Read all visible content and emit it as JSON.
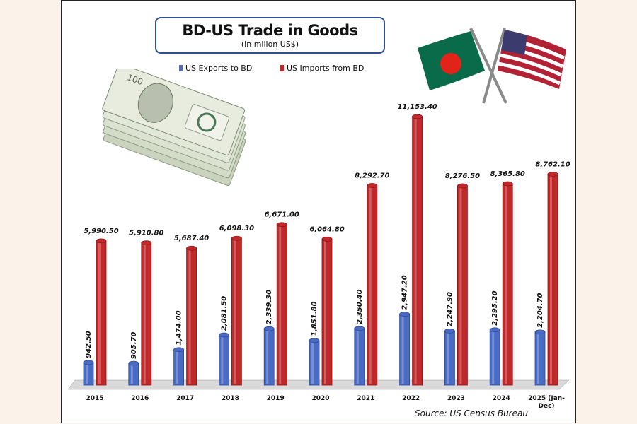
{
  "colors": {
    "exports": "#4a6bc4",
    "imports": "#c0282a",
    "title_border": "#2f4f8f"
  },
  "chart_data": {
    "type": "bar",
    "title": "BD-US Trade in Goods",
    "subtitle": "(in milion US$)",
    "categories": [
      "2015",
      "2016",
      "2017",
      "2018",
      "2019",
      "2020",
      "2021",
      "2022",
      "2023",
      "2024",
      "2025 (Jan-Dec)"
    ],
    "category_lines": [
      [
        "2015"
      ],
      [
        "2016"
      ],
      [
        "2017"
      ],
      [
        "2018"
      ],
      [
        "2019"
      ],
      [
        "2020"
      ],
      [
        "2021"
      ],
      [
        "2022"
      ],
      [
        "2023"
      ],
      [
        "2024"
      ],
      [
        "2025 (Jan-",
        "Dec)"
      ]
    ],
    "series": [
      {
        "name": "US Exports to BD",
        "values": [
          942.5,
          905.7,
          1474.0,
          2081.5,
          2339.3,
          1851.8,
          2350.4,
          2947.2,
          2247.9,
          2295.2,
          2204.7
        ],
        "labels": [
          "942.50",
          "905.70",
          "1,474.00",
          "2,081.50",
          "2,339.30",
          "1,851.80",
          "2,350.40",
          "2,947.20",
          "2,247.90",
          "2,295.20",
          "2,204.70"
        ]
      },
      {
        "name": "US Imports from BD",
        "values": [
          5990.5,
          5910.8,
          5687.4,
          6098.3,
          6671.0,
          6064.8,
          8292.7,
          11153.4,
          8276.5,
          8365.8,
          8762.1
        ],
        "labels": [
          "5,990.50",
          "5,910.80",
          "5,687.40",
          "6,098.30",
          "6,671.00",
          "6,064.80",
          "8,292.70",
          "11,153.40",
          "8,276.50",
          "8,365.80",
          "8,762.10"
        ]
      }
    ],
    "legend_position": "top-left",
    "grid": false
  },
  "source": "Source: US Census Bureau"
}
